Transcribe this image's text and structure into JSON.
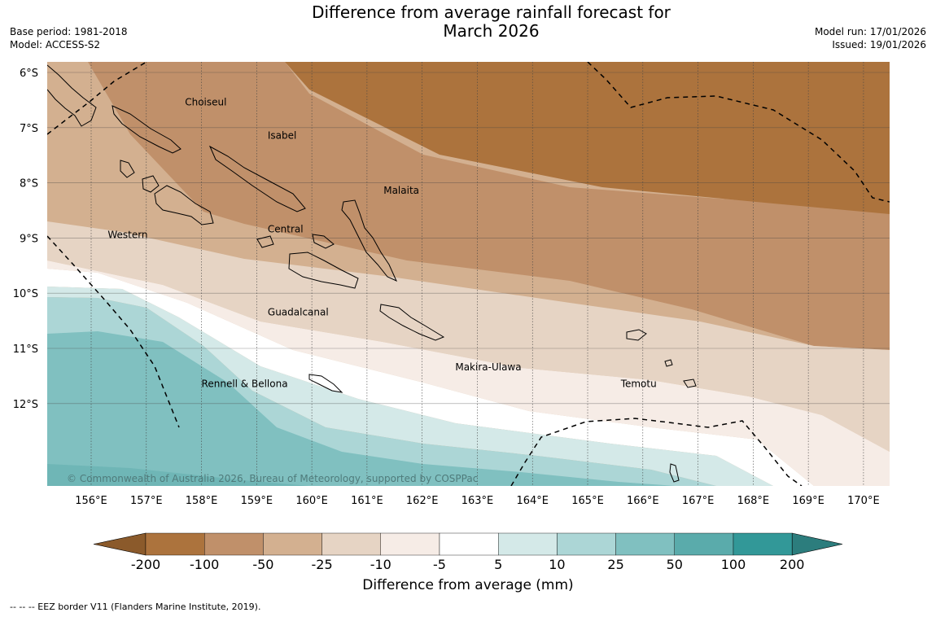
{
  "header": {
    "title_line1": "Difference from average rainfall forecast for",
    "title_line2": "March 2026",
    "base_period": "Base period: 1981-2018",
    "model": "Model: ACCESS-S2",
    "model_run": "Model run: 17/01/2026",
    "issued": "Issued: 19/01/2026"
  },
  "map": {
    "lat_labels": [
      "6°S",
      "7°S",
      "8°S",
      "9°S",
      "10°S",
      "11°S",
      "12°S"
    ],
    "lon_labels": [
      "156°E",
      "157°E",
      "158°E",
      "159°E",
      "160°E",
      "161°E",
      "162°E",
      "163°E",
      "164°E",
      "165°E",
      "166°E",
      "167°E",
      "168°E",
      "169°E",
      "170°E"
    ],
    "region_labels": [
      {
        "name": "Choiseul",
        "lon": 157.7,
        "lat": -6.6
      },
      {
        "name": "Isabel",
        "lon": 159.2,
        "lat": -7.2
      },
      {
        "name": "Malaita",
        "lon": 161.3,
        "lat": -8.2
      },
      {
        "name": "Western",
        "lon": 156.3,
        "lat": -9.0
      },
      {
        "name": "Central",
        "lon": 159.2,
        "lat": -8.9
      },
      {
        "name": "Guadalcanal",
        "lon": 159.2,
        "lat": -10.4
      },
      {
        "name": "Makira-Ulawa",
        "lon": 162.6,
        "lat": -11.4
      },
      {
        "name": "Rennell & Bellona",
        "lon": 158.0,
        "lat": -11.7
      },
      {
        "name": "Temotu",
        "lon": 165.6,
        "lat": -11.7
      }
    ],
    "copyright": "© Commonwealth of Australia 2026, Bureau of Meteorology, supported by COSPPac"
  },
  "legend": {
    "bins": [
      {
        "label": "-200",
        "color": "#8b5a2b"
      },
      {
        "label": "-100",
        "color": "#ac733d"
      },
      {
        "label": "-50",
        "color": "#c0906a"
      },
      {
        "label": "-25",
        "color": "#d3b090"
      },
      {
        "label": "-10",
        "color": "#e6d4c4"
      },
      {
        "label": "-5",
        "color": "#f6ece6"
      },
      {
        "label": "5",
        "color": "#ffffff"
      },
      {
        "label": "10",
        "color": "#d4e9e8"
      },
      {
        "label": "25",
        "color": "#acd6d6"
      },
      {
        "label": "50",
        "color": "#80c0c0"
      },
      {
        "label": "100",
        "color": "#5aabab"
      },
      {
        "label": "200",
        "color": "#329898"
      },
      {
        "label": "",
        "color": "#2c7d7d"
      }
    ],
    "axis_label": "Difference from average (mm)"
  },
  "footnote": "--  --  -- EEZ border V11 (Flanders Marine Institute, 2019)."
}
